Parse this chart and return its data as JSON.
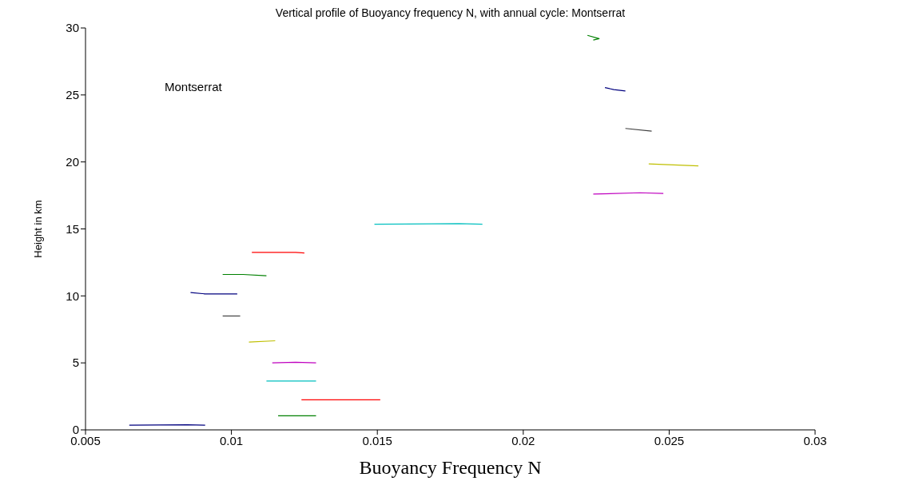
{
  "chart_data": {
    "type": "line",
    "title": "Vertical profile of Buoyancy frequency N, with annual cycle:  Montserrat",
    "xlabel": "Buoyancy Frequency N",
    "ylabel": "Height in km",
    "annotations": [
      "Montserrat"
    ],
    "xlim": [
      0.005,
      0.03
    ],
    "xticks": [
      0.005,
      0.01,
      0.015,
      0.02,
      0.025,
      0.03
    ],
    "ylim": [
      0,
      30
    ],
    "yticks": [
      0,
      5,
      10,
      15,
      20,
      25,
      30
    ],
    "grid": false,
    "marker": "none",
    "line_style": "solid",
    "series": [
      {
        "color": "#00007f",
        "x": [
          0.0065,
          0.0085,
          0.0091
        ],
        "values": [
          0.35,
          0.38,
          0.35
        ]
      },
      {
        "color": "#008000",
        "x": [
          0.0116,
          0.0129
        ],
        "values": [
          1.05,
          1.05
        ]
      },
      {
        "color": "#ff0000",
        "x": [
          0.0124,
          0.0151
        ],
        "values": [
          2.25,
          2.25
        ]
      },
      {
        "color": "#00bfbf",
        "x": [
          0.0112,
          0.0129
        ],
        "values": [
          3.65,
          3.65
        ]
      },
      {
        "color": "#bf00bf",
        "x": [
          0.0114,
          0.0122,
          0.0129
        ],
        "values": [
          5.0,
          5.05,
          5.0
        ]
      },
      {
        "color": "#bfbf00",
        "x": [
          0.0106,
          0.0115
        ],
        "values": [
          6.55,
          6.65
        ]
      },
      {
        "color": "#404040",
        "x": [
          0.0097,
          0.0103
        ],
        "values": [
          8.5,
          8.5
        ]
      },
      {
        "color": "#00007f",
        "x": [
          0.0086,
          0.0091,
          0.0102
        ],
        "values": [
          10.25,
          10.15,
          10.15
        ]
      },
      {
        "color": "#008000",
        "x": [
          0.0097,
          0.0104,
          0.0112
        ],
        "values": [
          11.6,
          11.6,
          11.5
        ]
      },
      {
        "color": "#ff0000",
        "x": [
          0.0107,
          0.0122,
          0.0125
        ],
        "values": [
          13.25,
          13.25,
          13.2
        ]
      },
      {
        "color": "#00bfbf",
        "x": [
          0.0149,
          0.0178,
          0.0186
        ],
        "values": [
          15.35,
          15.4,
          15.35
        ]
      },
      {
        "color": "#bf00bf",
        "x": [
          0.0224,
          0.024,
          0.0248
        ],
        "values": [
          17.6,
          17.7,
          17.65
        ]
      },
      {
        "color": "#bfbf00",
        "x": [
          0.0243,
          0.026
        ],
        "values": [
          19.85,
          19.7
        ]
      },
      {
        "color": "#404040",
        "x": [
          0.0235,
          0.0244
        ],
        "values": [
          22.5,
          22.3
        ]
      },
      {
        "color": "#00007f",
        "x": [
          0.0228,
          0.0231,
          0.0235
        ],
        "values": [
          25.55,
          25.4,
          25.3
        ]
      },
      {
        "color": "#008000",
        "x": [
          0.0222,
          0.0226,
          0.0224
        ],
        "values": [
          29.45,
          29.2,
          29.1
        ]
      }
    ]
  }
}
